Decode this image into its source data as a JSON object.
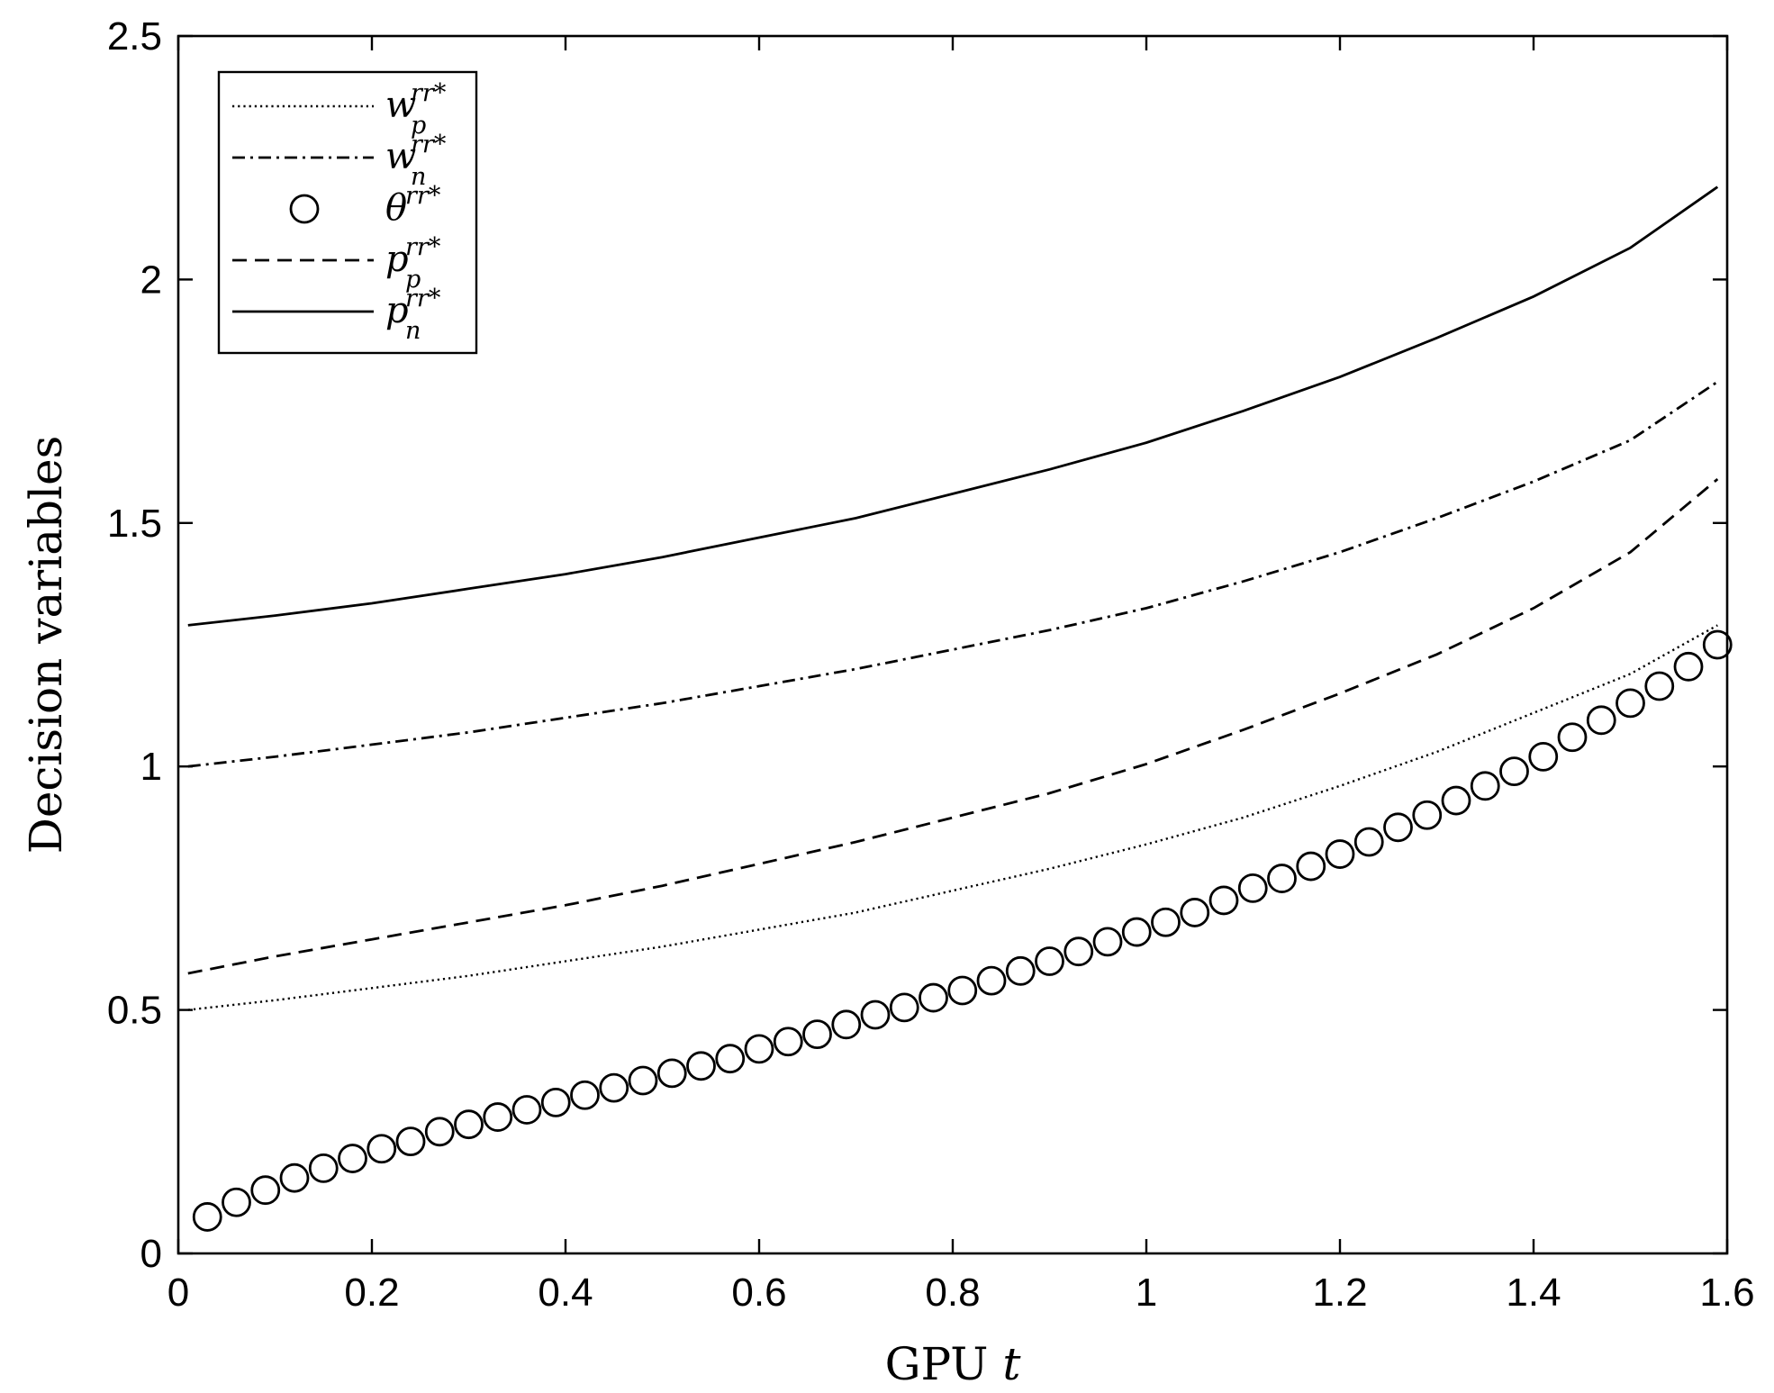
{
  "chart_data": {
    "type": "line",
    "xlabel": "GPU",
    "xlabel_var": "t",
    "ylabel": "Decision variables",
    "xlim": [
      0,
      1.6
    ],
    "ylim": [
      0,
      2.5
    ],
    "xticks": [
      "0",
      "0.2",
      "0.4",
      "0.6",
      "0.8",
      "1",
      "1.2",
      "1.4",
      "1.6"
    ],
    "yticks": [
      "0",
      "0.5",
      "1",
      "1.5",
      "2",
      "2.5"
    ],
    "grid": false,
    "legend_position": "top-left",
    "series": [
      {
        "name": "w_p^{rr*}",
        "legend": {
          "base": "w",
          "sub": "p",
          "sup": "rr*"
        },
        "style": "dotted",
        "marker": "none",
        "x": [
          0.01,
          0.1,
          0.2,
          0.3,
          0.4,
          0.5,
          0.6,
          0.7,
          0.8,
          0.9,
          1.0,
          1.1,
          1.2,
          1.3,
          1.4,
          1.5,
          1.59
        ],
        "y": [
          0.5,
          0.52,
          0.545,
          0.57,
          0.6,
          0.63,
          0.665,
          0.7,
          0.745,
          0.79,
          0.84,
          0.895,
          0.96,
          1.03,
          1.11,
          1.19,
          1.29
        ]
      },
      {
        "name": "w_n^{rr*}",
        "legend": {
          "base": "w",
          "sub": "n",
          "sup": "rr*"
        },
        "style": "dashdot",
        "marker": "none",
        "x": [
          0.01,
          0.1,
          0.2,
          0.3,
          0.4,
          0.5,
          0.6,
          0.7,
          0.8,
          0.9,
          1.0,
          1.1,
          1.2,
          1.3,
          1.4,
          1.5,
          1.59
        ],
        "y": [
          1.0,
          1.02,
          1.045,
          1.07,
          1.1,
          1.13,
          1.165,
          1.2,
          1.24,
          1.28,
          1.325,
          1.38,
          1.44,
          1.51,
          1.585,
          1.67,
          1.79
        ]
      },
      {
        "name": "θ^{rr*}",
        "legend": {
          "base": "θ",
          "sub": "",
          "sup": "rr*"
        },
        "style": "none",
        "marker": "circle",
        "x": [
          0.03,
          0.06,
          0.09,
          0.12,
          0.15,
          0.18,
          0.21,
          0.24,
          0.27,
          0.3,
          0.33,
          0.36,
          0.39,
          0.42,
          0.45,
          0.48,
          0.51,
          0.54,
          0.57,
          0.6,
          0.63,
          0.66,
          0.69,
          0.72,
          0.75,
          0.78,
          0.81,
          0.84,
          0.87,
          0.9,
          0.93,
          0.96,
          0.99,
          1.02,
          1.05,
          1.08,
          1.11,
          1.14,
          1.17,
          1.2,
          1.23,
          1.26,
          1.29,
          1.32,
          1.35,
          1.38,
          1.41,
          1.44,
          1.47,
          1.5,
          1.53,
          1.56,
          1.59
        ],
        "y": [
          0.075,
          0.105,
          0.13,
          0.155,
          0.175,
          0.195,
          0.215,
          0.23,
          0.25,
          0.265,
          0.28,
          0.295,
          0.31,
          0.325,
          0.34,
          0.355,
          0.37,
          0.385,
          0.4,
          0.42,
          0.435,
          0.45,
          0.47,
          0.49,
          0.505,
          0.525,
          0.54,
          0.56,
          0.58,
          0.6,
          0.62,
          0.64,
          0.66,
          0.68,
          0.7,
          0.725,
          0.75,
          0.77,
          0.795,
          0.82,
          0.845,
          0.875,
          0.9,
          0.93,
          0.96,
          0.99,
          1.02,
          1.06,
          1.095,
          1.13,
          1.165,
          1.205,
          1.25
        ]
      },
      {
        "name": "p_p^{rr*}",
        "legend": {
          "base": "p",
          "sub": "p",
          "sup": "rr*"
        },
        "style": "dashed",
        "marker": "none",
        "x": [
          0.01,
          0.1,
          0.2,
          0.3,
          0.4,
          0.5,
          0.6,
          0.7,
          0.8,
          0.9,
          1.0,
          1.1,
          1.2,
          1.3,
          1.4,
          1.5,
          1.59
        ],
        "y": [
          0.575,
          0.61,
          0.645,
          0.68,
          0.715,
          0.755,
          0.8,
          0.845,
          0.895,
          0.945,
          1.005,
          1.075,
          1.15,
          1.23,
          1.325,
          1.44,
          1.59
        ]
      },
      {
        "name": "p_n^{rr*}",
        "legend": {
          "base": "p",
          "sub": "n",
          "sup": "rr*"
        },
        "style": "solid",
        "marker": "none",
        "x": [
          0.01,
          0.1,
          0.2,
          0.3,
          0.4,
          0.5,
          0.6,
          0.7,
          0.8,
          0.9,
          1.0,
          1.1,
          1.2,
          1.3,
          1.4,
          1.5,
          1.59
        ],
        "y": [
          1.29,
          1.31,
          1.335,
          1.365,
          1.395,
          1.43,
          1.47,
          1.51,
          1.56,
          1.61,
          1.665,
          1.73,
          1.8,
          1.88,
          1.965,
          2.065,
          2.19
        ]
      }
    ]
  }
}
